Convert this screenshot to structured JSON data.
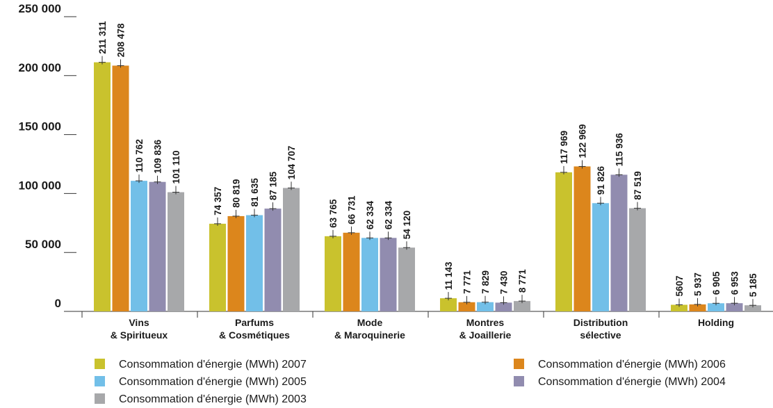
{
  "colors": {
    "2007": "#c9c22d",
    "2006": "#dc861c",
    "2005": "#72bfe8",
    "2004": "#918caf",
    "2003": "#a7a8aa"
  },
  "chart_data": {
    "type": "bar",
    "title": "",
    "xlabel": "",
    "ylabel": "",
    "ylim": [
      0,
      250000
    ],
    "yticks": [
      "0",
      "50 000",
      "100 000",
      "150 000",
      "200 000",
      "250 000"
    ],
    "ytick_values": [
      0,
      50000,
      100000,
      150000,
      200000,
      250000
    ],
    "grid": false,
    "legend_position": "bottom",
    "categories": [
      [
        "Vins",
        "& Spiritueux"
      ],
      [
        "Parfums",
        "& Cosmétiques"
      ],
      [
        "Mode",
        "& Maroquinerie"
      ],
      [
        "Montres",
        "& Joaillerie"
      ],
      [
        "Distribution",
        "sélective"
      ],
      [
        "Holding"
      ]
    ],
    "series": [
      {
        "name": "Consommation d'énergie (MWh) 2007",
        "key": "2007",
        "values": [
          211311,
          74357,
          63765,
          11143,
          117969,
          5607
        ],
        "labels": [
          "211 311",
          "74 357",
          "63 765",
          "11 143",
          "117 969",
          "5607"
        ]
      },
      {
        "name": "Consommation d'énergie (MWh) 2006",
        "key": "2006",
        "values": [
          208478,
          80819,
          66731,
          7771,
          122969,
          5937
        ],
        "labels": [
          "208 478",
          "80 819",
          "66 731",
          "7 771",
          "122 969",
          "5 937"
        ]
      },
      {
        "name": "Consommation d'énergie (MWh) 2005",
        "key": "2005",
        "values": [
          110762,
          81635,
          62334,
          7829,
          91826,
          6905
        ],
        "labels": [
          "110 762",
          "81 635",
          "62 334",
          "7 829",
          "91 826",
          "6 905"
        ]
      },
      {
        "name": "Consommation d'énergie (MWh) 2004",
        "key": "2004",
        "values": [
          109836,
          87185,
          62334,
          7430,
          115936,
          6953
        ],
        "labels": [
          "109 836",
          "87 185",
          "62 334",
          "7 430",
          "115 936",
          "6 953"
        ]
      },
      {
        "name": "Consommation d'énergie (MWh) 2003",
        "key": "2003",
        "values": [
          101110,
          104707,
          54120,
          8771,
          87519,
          5185
        ],
        "labels": [
          "101 110",
          "104 707",
          "54 120",
          "8 771",
          "87 519",
          "5 185"
        ]
      }
    ]
  }
}
